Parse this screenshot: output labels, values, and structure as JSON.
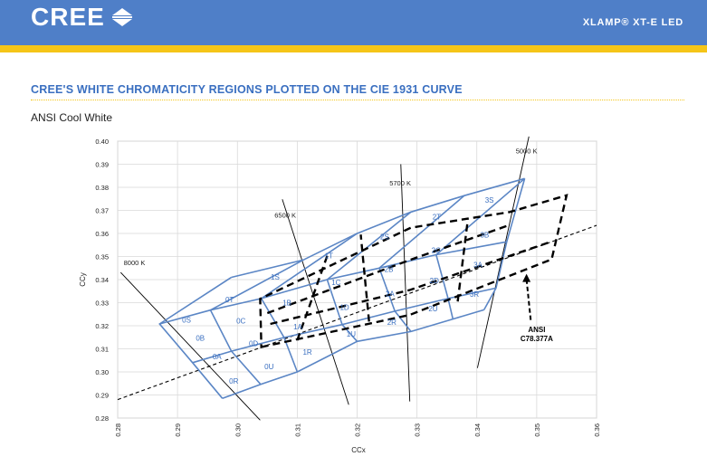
{
  "header": {
    "logo_text": "CREE",
    "product": "XLAMP® XT-E LED",
    "colors": {
      "header_bg": "#4f7fc8",
      "stripe": "#f5c518"
    }
  },
  "section": {
    "title": "CREE'S WHITE CHROMATICITY REGIONS PLOTTED ON THE CIE 1931 CURVE",
    "subtitle": "ANSI Cool White"
  },
  "chart_data": {
    "type": "chromaticity-region-map",
    "xlabel": "CCx",
    "ylabel": "CCy",
    "xlim": [
      0.28,
      0.36
    ],
    "ylim": [
      0.28,
      0.4
    ],
    "x_ticks": [
      "0.28",
      "0.29",
      "0.30",
      "0.31",
      "0.32",
      "0.33",
      "0.34",
      "0.35",
      "0.36"
    ],
    "y_ticks": [
      "0.28",
      "0.29",
      "0.30",
      "0.31",
      "0.32",
      "0.33",
      "0.34",
      "0.35",
      "0.36",
      "0.37",
      "0.38",
      "0.39",
      "0.40"
    ],
    "grid": true,
    "colors": {
      "regions": "#5b86c5",
      "region_text": "#3a6fc0",
      "ansi": "#000000"
    },
    "region_rows": [
      [
        [
          0.2975,
          0.2885
        ],
        [
          0.3039,
          0.2946
        ],
        [
          0.31,
          0.3
        ],
        [
          0.32,
          0.3132
        ],
        [
          0.329,
          0.3175
        ],
        [
          0.336,
          0.3229
        ],
        [
          0.3412,
          0.3269
        ]
      ],
      [
        [
          0.2925,
          0.304
        ],
        [
          0.299,
          0.309
        ],
        [
          0.3078,
          0.3149
        ],
        [
          0.3175,
          0.3205
        ],
        [
          0.3263,
          0.3263
        ],
        [
          0.3352,
          0.3318
        ],
        [
          0.3432,
          0.3363
        ]
      ],
      [
        [
          0.287,
          0.3208
        ],
        [
          0.2955,
          0.3268
        ],
        [
          0.304,
          0.3318
        ],
        [
          0.315,
          0.34
        ],
        [
          0.3237,
          0.345
        ],
        [
          0.3332,
          0.3508
        ],
        [
          0.345,
          0.3564
        ]
      ],
      [
        [
          0.299,
          0.341
        ],
        [
          0.311,
          0.3485
        ],
        [
          0.32,
          0.36
        ],
        [
          0.329,
          0.3693
        ],
        [
          0.3379,
          0.3764
        ],
        [
          0.348,
          0.3838
        ]
      ]
    ],
    "regions": [
      {
        "label": "0S",
        "x": 0.2915,
        "y": 0.3225
      },
      {
        "label": "0T",
        "x": 0.2987,
        "y": 0.3314
      },
      {
        "label": "0B",
        "x": 0.2938,
        "y": 0.3148
      },
      {
        "label": "0C",
        "x": 0.3006,
        "y": 0.3221
      },
      {
        "label": "0A",
        "x": 0.2966,
        "y": 0.3066
      },
      {
        "label": "0D",
        "x": 0.3027,
        "y": 0.3123
      },
      {
        "label": "0R",
        "x": 0.2994,
        "y": 0.296
      },
      {
        "label": "0U",
        "x": 0.3053,
        "y": 0.3024
      },
      {
        "label": "1S",
        "x": 0.3063,
        "y": 0.3412
      },
      {
        "label": "1B",
        "x": 0.3083,
        "y": 0.33
      },
      {
        "label": "1A",
        "x": 0.3101,
        "y": 0.3196
      },
      {
        "label": "1R",
        "x": 0.3117,
        "y": 0.3087
      },
      {
        "label": "1T",
        "x": 0.3153,
        "y": 0.3503
      },
      {
        "label": "1C",
        "x": 0.3165,
        "y": 0.3389
      },
      {
        "label": "1D",
        "x": 0.3179,
        "y": 0.3281
      },
      {
        "label": "1U",
        "x": 0.319,
        "y": 0.3164
      },
      {
        "label": "2S",
        "x": 0.3246,
        "y": 0.3586
      },
      {
        "label": "2B",
        "x": 0.3253,
        "y": 0.3445
      },
      {
        "label": "2A",
        "x": 0.3255,
        "y": 0.334
      },
      {
        "label": "2R",
        "x": 0.3258,
        "y": 0.3216
      },
      {
        "label": "2T",
        "x": 0.3333,
        "y": 0.3672
      },
      {
        "label": "2C",
        "x": 0.3332,
        "y": 0.3527
      },
      {
        "label": "2D",
        "x": 0.3329,
        "y": 0.3397
      },
      {
        "label": "2U",
        "x": 0.3327,
        "y": 0.3274
      },
      {
        "label": "3S",
        "x": 0.3421,
        "y": 0.3745
      },
      {
        "label": "3B",
        "x": 0.3413,
        "y": 0.3594
      },
      {
        "label": "3A",
        "x": 0.3402,
        "y": 0.3464
      },
      {
        "label": "3R",
        "x": 0.3396,
        "y": 0.3338
      }
    ],
    "kelvin_lines": [
      {
        "label": "8000 K",
        "from": [
          0.2805,
          0.3431
        ],
        "to": [
          0.3038,
          0.2791
        ],
        "label_at": [
          0.281,
          0.3462
        ]
      },
      {
        "label": "6500 K",
        "from": [
          0.3075,
          0.3748
        ],
        "to": [
          0.3186,
          0.2858
        ],
        "label_at": [
          0.3062,
          0.3668
        ]
      },
      {
        "label": "5700 K",
        "from": [
          0.3273,
          0.39
        ],
        "to": [
          0.3288,
          0.2872
        ],
        "label_at": [
          0.3254,
          0.3808
        ]
      },
      {
        "label": "5000 K",
        "from": [
          0.3487,
          0.402
        ],
        "to": [
          0.3401,
          0.3017
        ],
        "label_at": [
          0.3465,
          0.3947
        ]
      }
    ],
    "blackbody_line": {
      "from": [
        0.28,
        0.288
      ],
      "to": [
        0.36,
        0.3635
      ]
    },
    "ansi_outer": [
      [
        0.304,
        0.3108
      ],
      [
        0.3288,
        0.3247
      ],
      [
        0.3525,
        0.3488
      ],
      [
        0.355,
        0.3765
      ],
      [
        0.3455,
        0.3693
      ],
      [
        0.329,
        0.3625
      ],
      [
        0.3038,
        0.3317
      ]
    ],
    "ansi_inner_rows": [
      [
        [
          0.3055,
          0.3208
        ],
        [
          0.3288,
          0.3355
        ],
        [
          0.3525,
          0.3565
        ]
      ],
      [
        [
          0.305,
          0.3255
        ],
        [
          0.3288,
          0.3485
        ],
        [
          0.3455,
          0.3637
        ]
      ]
    ],
    "ansi_verticals": [
      [
        [
          0.31,
          0.3137
        ],
        [
          0.3151,
          0.351
        ]
      ],
      [
        [
          0.322,
          0.3218
        ],
        [
          0.3206,
          0.3595
        ]
      ],
      [
        [
          0.3368,
          0.3305
        ],
        [
          0.3385,
          0.366
        ]
      ]
    ],
    "ansi_annotation": {
      "text_line1": "ANSI",
      "text_line2": "C78.377A",
      "label_at": [
        0.35,
        0.3172
      ],
      "arrow_from": [
        0.349,
        0.3225
      ],
      "arrow_to": [
        0.3483,
        0.3425
      ]
    }
  }
}
